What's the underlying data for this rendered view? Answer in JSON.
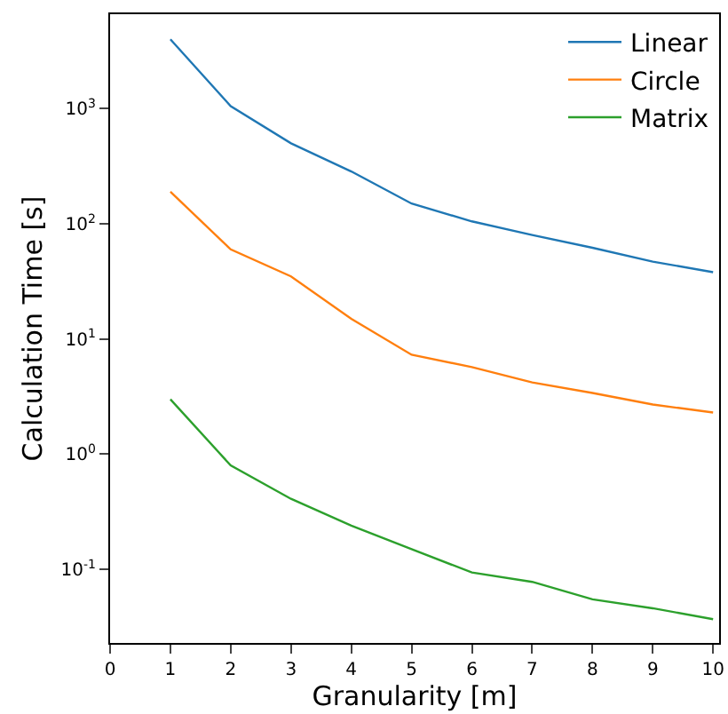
{
  "chart_data": {
    "type": "line",
    "xlabel": "Granularity [m]",
    "ylabel": "Calculation Time [s]",
    "x": [
      1,
      2,
      3,
      4,
      5,
      6,
      7,
      8,
      9,
      10
    ],
    "log": "y",
    "grid": false,
    "legend": "top right",
    "marker": "none",
    "line_style": "solid",
    "xlim": [
      0,
      10.1
    ],
    "xticks": [
      0,
      1,
      2,
      3,
      4,
      5,
      6,
      7,
      8,
      9,
      10
    ],
    "ylim": [
      0.023,
      6600
    ],
    "yticks": [
      {
        "value": 0.1,
        "label": "10$^{-1}$"
      },
      {
        "value": 1,
        "label": "10$^{0}$"
      },
      {
        "value": 10,
        "label": "10$^{1}$"
      },
      {
        "value": 100,
        "label": "10$^{2}$"
      },
      {
        "value": 1000,
        "label": "10$^{3}$"
      }
    ],
    "series": [
      {
        "name": "Linear",
        "color": "#1f77b4",
        "values": [
          4000,
          1050,
          500,
          285,
          150,
          105,
          80,
          62,
          47,
          38
        ]
      },
      {
        "name": "Circle",
        "color": "#ff7f0e",
        "values": [
          190,
          60,
          35,
          15,
          7.3,
          5.7,
          4.2,
          3.4,
          2.7,
          2.3
        ]
      },
      {
        "name": "Matrix",
        "color": "#2ca02c",
        "values": [
          3.0,
          0.8,
          0.41,
          0.24,
          0.15,
          0.094,
          0.078,
          0.055,
          0.046,
          0.037
        ]
      }
    ]
  }
}
